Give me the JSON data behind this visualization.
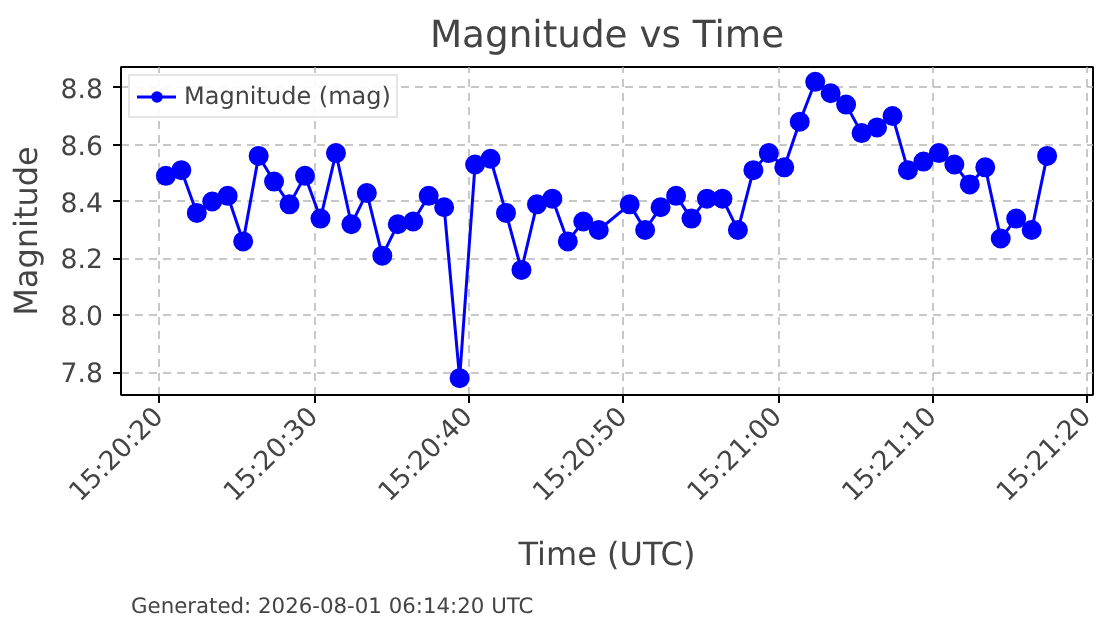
{
  "chart_data": {
    "type": "line",
    "title": "Magnitude vs Time",
    "xlabel": "Time (UTC)",
    "ylabel": "Magnitude",
    "annotations": [
      "Generated: 2026-08-01 06:14:20 UTC"
    ],
    "x": [
      15.339,
      15.339278,
      15.339556,
      15.339833,
      15.340111,
      15.340389,
      15.340667,
      15.340944,
      15.341222,
      15.3415,
      15.341778,
      15.342056,
      15.342333,
      15.342611,
      15.342889,
      15.343167,
      15.343444,
      15.343722,
      15.344,
      15.344278,
      15.344556,
      15.344833,
      15.345111,
      15.345389,
      15.345667,
      15.345944,
      15.346222,
      15.3465,
      15.346778,
      15.347333,
      15.347611,
      15.347889,
      15.348167,
      15.348444,
      15.348722,
      15.349,
      15.349278,
      15.349556,
      15.349833,
      15.350111,
      15.350389,
      15.350667,
      15.350944,
      15.351222,
      15.3515,
      15.351778,
      15.352056,
      15.352333,
      15.352611,
      15.352889,
      15.353167,
      15.353444,
      15.353722,
      15.354,
      15.354278,
      15.354556,
      15.354833
    ],
    "series": [
      {
        "name": "Magnitude (mag)",
        "color": "#0000ff",
        "values": [
          8.49,
          8.51,
          8.36,
          8.4,
          8.42,
          8.26,
          8.56,
          8.47,
          8.39,
          8.49,
          8.34,
          8.57,
          8.32,
          8.43,
          8.21,
          8.32,
          8.33,
          8.42,
          8.38,
          7.78,
          8.53,
          8.55,
          8.36,
          8.16,
          8.39,
          8.41,
          8.26,
          8.33,
          8.3,
          8.39,
          8.3,
          8.38,
          8.42,
          8.34,
          8.41,
          8.41,
          8.3,
          8.51,
          8.57,
          8.52,
          8.68,
          8.82,
          8.78,
          8.74,
          8.64,
          8.66,
          8.7,
          8.51,
          8.54,
          8.57,
          8.53,
          8.46,
          8.52,
          8.27,
          8.34,
          8.3,
          8.56
        ]
      }
    ],
    "xlim": [
      15.338194,
      15.355658
    ],
    "ylim": [
      7.721,
      8.872
    ],
    "xticks": [
      {
        "value": 15.338889,
        "label": "15:20:20"
      },
      {
        "value": 15.341667,
        "label": "15:20:30"
      },
      {
        "value": 15.344444,
        "label": "15:20:40"
      },
      {
        "value": 15.347222,
        "label": "15:20:50"
      },
      {
        "value": 15.35,
        "label": "15:21:00"
      },
      {
        "value": 15.352778,
        "label": "15:21:10"
      },
      {
        "value": 15.355556,
        "label": "15:21:20"
      }
    ],
    "yticks": [
      {
        "value": 7.8,
        "label": "7.8"
      },
      {
        "value": 8.0,
        "label": "8.0"
      },
      {
        "value": 8.2,
        "label": "8.2"
      },
      {
        "value": 8.4,
        "label": "8.4"
      },
      {
        "value": 8.6,
        "label": "8.6"
      },
      {
        "value": 8.8,
        "label": "8.8"
      }
    ],
    "grid": true,
    "legend": "top left",
    "marker": "circle",
    "line_style": "solid"
  }
}
